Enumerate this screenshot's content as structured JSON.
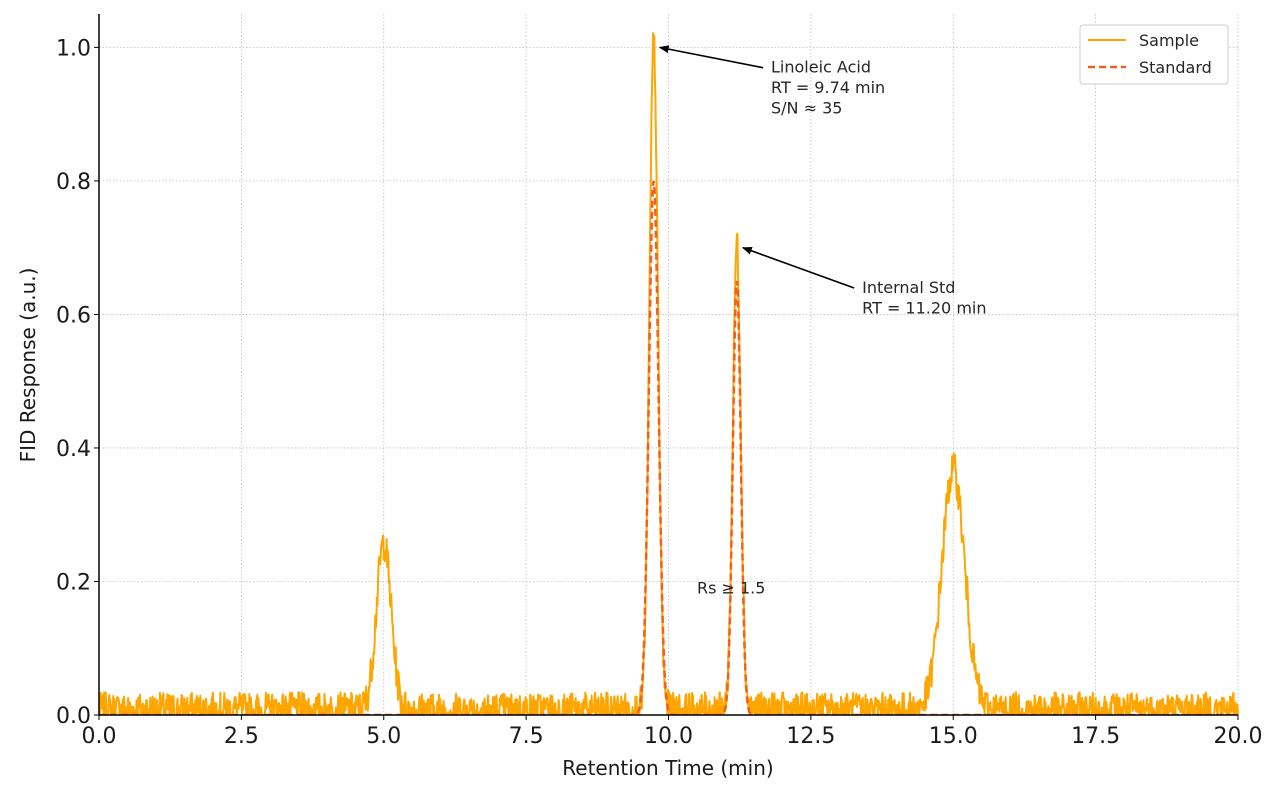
{
  "chart_data": {
    "type": "line",
    "title": "",
    "xlabel": "Retention Time (min)",
    "ylabel": "FID Response (a.u.)",
    "xlim": [
      0,
      20
    ],
    "ylim": [
      0,
      1.05
    ],
    "xticks": [
      0.0,
      2.5,
      5.0,
      7.5,
      10.0,
      12.5,
      15.0,
      17.5,
      20.0
    ],
    "xtick_labels": [
      "0.0",
      "2.5",
      "5.0",
      "7.5",
      "10.0",
      "12.5",
      "15.0",
      "17.5",
      "20.0"
    ],
    "yticks": [
      0.0,
      0.2,
      0.4,
      0.6,
      0.8,
      1.0
    ],
    "ytick_labels": [
      "0.0",
      "0.2",
      "0.4",
      "0.6",
      "0.8",
      "1.0"
    ],
    "grid": true,
    "legend_position": "top-right",
    "noise_level": 0.02,
    "series": [
      {
        "name": "Sample",
        "color": "#FFA500",
        "style": "solid",
        "baseline_noise": 0.02,
        "peaks": [
          {
            "rt": 5.0,
            "height": 0.25,
            "sigma": 0.13
          },
          {
            "rt": 9.74,
            "height": 1.0,
            "sigma": 0.075
          },
          {
            "rt": 11.2,
            "height": 0.7,
            "sigma": 0.07
          },
          {
            "rt": 15.0,
            "height": 0.36,
            "sigma": 0.2
          }
        ]
      },
      {
        "name": "Standard",
        "color": "#F06020",
        "style": "dashed",
        "baseline_noise": 0,
        "peaks": [
          {
            "rt": 9.74,
            "height": 0.8,
            "sigma": 0.085
          },
          {
            "rt": 11.2,
            "height": 0.65,
            "sigma": 0.07
          }
        ]
      }
    ],
    "annotations": [
      {
        "lines": [
          "Linoleic Acid",
          "RT = 9.74 min",
          "S/N ≈ 35"
        ],
        "point": [
          9.74,
          1.0
        ],
        "text_at": [
          11.8,
          0.98
        ]
      },
      {
        "lines": [
          "Internal Std",
          "RT = 11.20 min"
        ],
        "point": [
          11.2,
          0.7
        ],
        "text_at": [
          13.4,
          0.65
        ]
      },
      {
        "lines": [
          "Rs ≥ 1.5"
        ],
        "point": null,
        "text_at": [
          10.5,
          0.2
        ]
      }
    ]
  }
}
